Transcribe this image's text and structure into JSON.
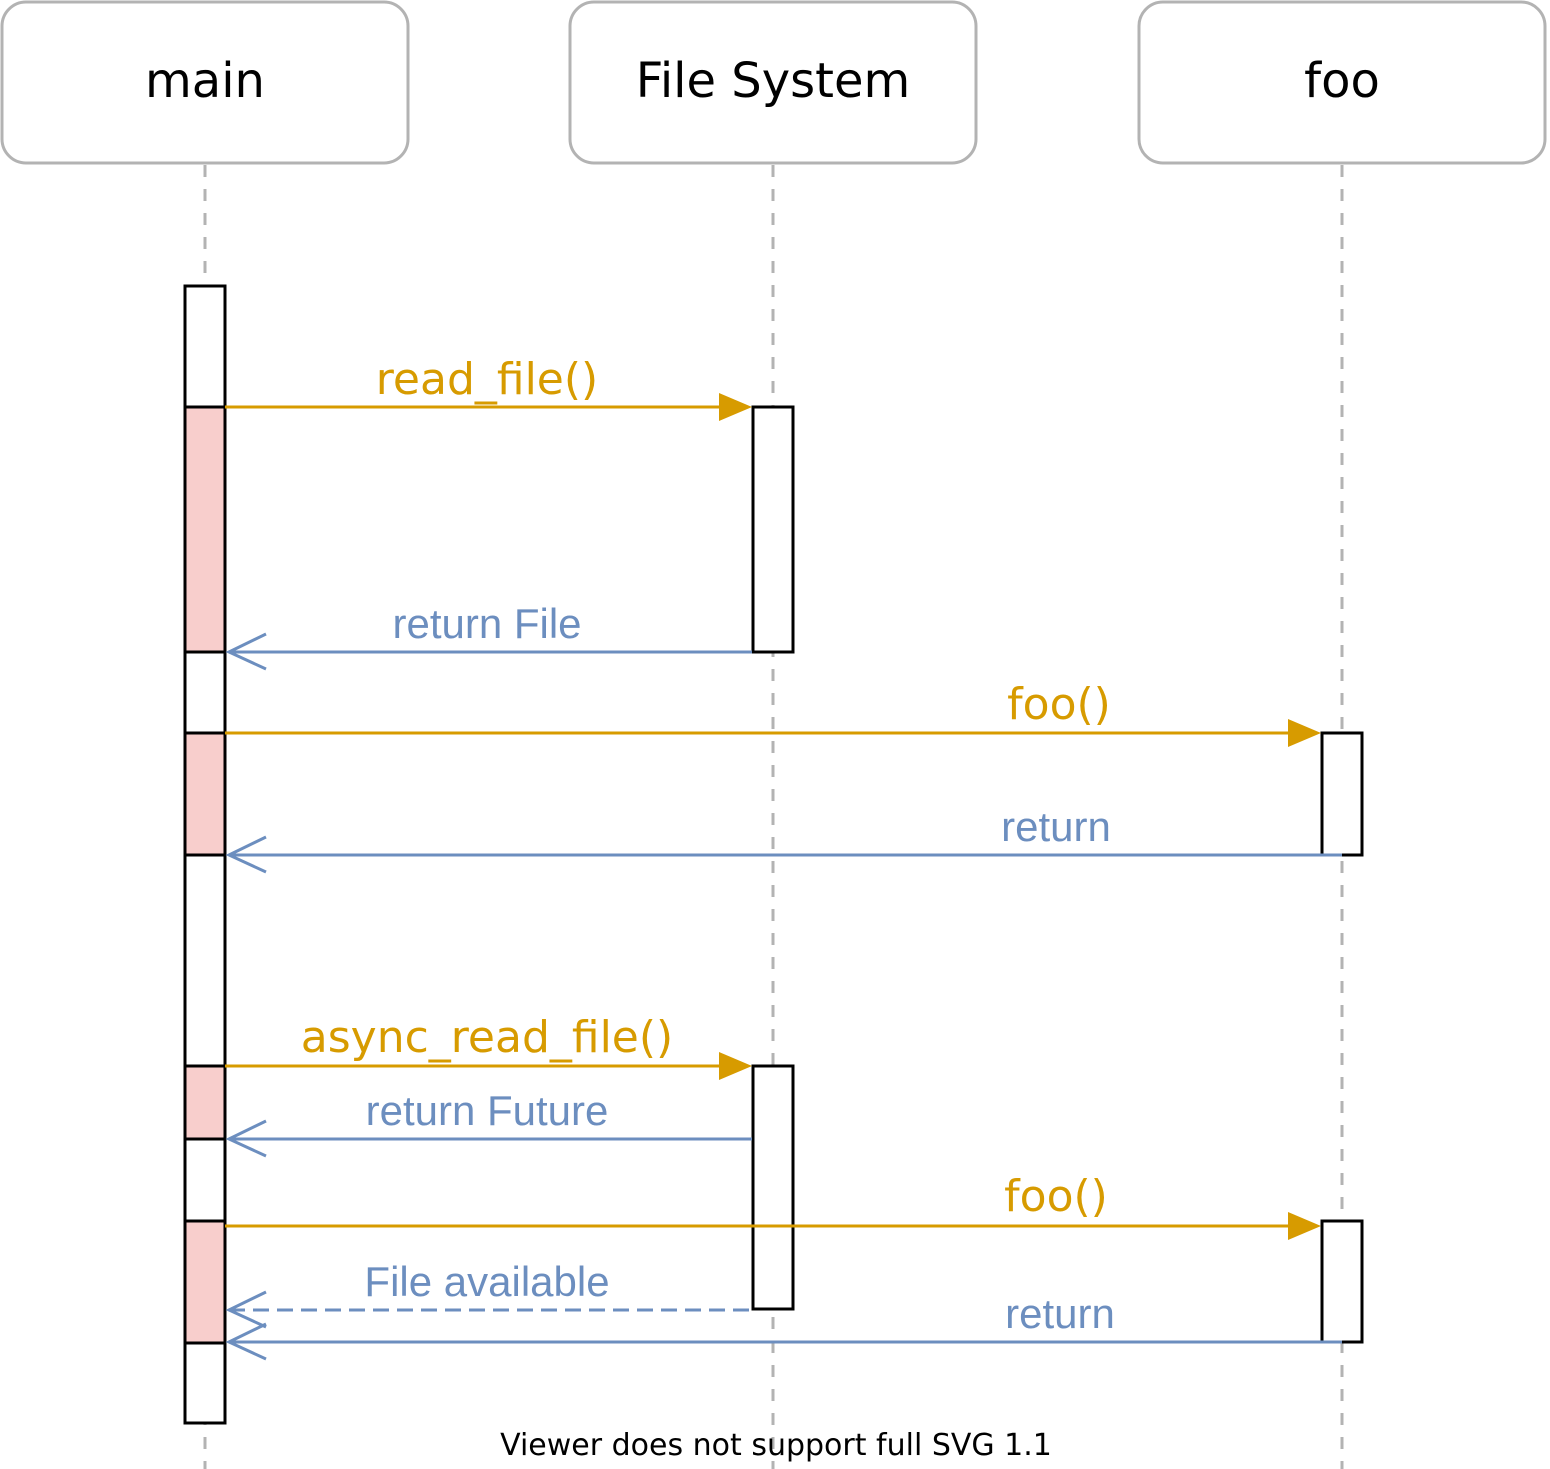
{
  "participants": [
    {
      "id": "main",
      "label": "main"
    },
    {
      "id": "fs",
      "label": "File System"
    },
    {
      "id": "foo",
      "label": "foo"
    }
  ],
  "messages": [
    {
      "id": "m1",
      "kind": "call",
      "from": "main",
      "to": "fs",
      "label": "read_file()"
    },
    {
      "id": "m2",
      "kind": "return",
      "from": "fs",
      "to": "main",
      "label": "return File"
    },
    {
      "id": "m3",
      "kind": "call",
      "from": "main",
      "to": "foo",
      "label": "foo()"
    },
    {
      "id": "m4",
      "kind": "return",
      "from": "foo",
      "to": "main",
      "label": "return"
    },
    {
      "id": "m5",
      "kind": "call",
      "from": "main",
      "to": "fs",
      "label": "async_read_file()"
    },
    {
      "id": "m6",
      "kind": "return",
      "from": "fs",
      "to": "main",
      "label": "return Future"
    },
    {
      "id": "m7",
      "kind": "call",
      "from": "main",
      "to": "foo",
      "label": "foo()"
    },
    {
      "id": "m8",
      "kind": "async-return",
      "from": "fs",
      "to": "main",
      "label": "File available"
    },
    {
      "id": "m9",
      "kind": "return",
      "from": "foo",
      "to": "main",
      "label": "return"
    }
  ],
  "colors": {
    "call": "#d79b00",
    "return": "#6c8ebf",
    "blocked_fill": "#f8cecc",
    "lifeline": "#b3b3b3",
    "box_border": "#b3b3b3"
  },
  "footer": "Viewer does not support full SVG 1.1"
}
